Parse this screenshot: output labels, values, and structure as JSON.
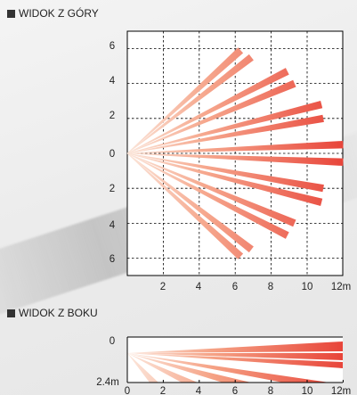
{
  "top_view": {
    "title": "WIDOK Z GÓRY",
    "y_tick_labels": [
      "6",
      "4",
      "2",
      "0",
      "2",
      "4",
      "6"
    ],
    "x_tick_labels": [
      "2",
      "4",
      "6",
      "8",
      "10",
      "12m"
    ],
    "beams": [
      {
        "end": [
          6.3,
          5.9
        ]
      },
      {
        "end": [
          6.9,
          5.5
        ]
      },
      {
        "end": [
          8.9,
          4.7
        ]
      },
      {
        "end": [
          9.3,
          4.0
        ]
      },
      {
        "end": [
          10.8,
          2.8
        ]
      },
      {
        "end": [
          10.9,
          2.0
        ]
      },
      {
        "end": [
          12.0,
          0.5
        ]
      },
      {
        "end": [
          12.0,
          -0.5
        ]
      },
      {
        "end": [
          10.9,
          -2.0
        ]
      },
      {
        "end": [
          10.8,
          -2.8
        ]
      },
      {
        "end": [
          9.3,
          -4.0
        ]
      },
      {
        "end": [
          8.9,
          -4.7
        ]
      },
      {
        "end": [
          6.9,
          -5.5
        ]
      },
      {
        "end": [
          6.3,
          -5.9
        ]
      }
    ]
  },
  "side_view": {
    "title": "WIDOK Z BOKU",
    "y_tick_labels": [
      "0",
      "2.4m"
    ],
    "x_tick_labels": [
      "0",
      "2",
      "4",
      "6",
      "8",
      "10",
      "12m"
    ]
  },
  "colors": {
    "beam_near": "#fbe3d6",
    "beam_far": "#e8453a",
    "grid": "#000000"
  }
}
